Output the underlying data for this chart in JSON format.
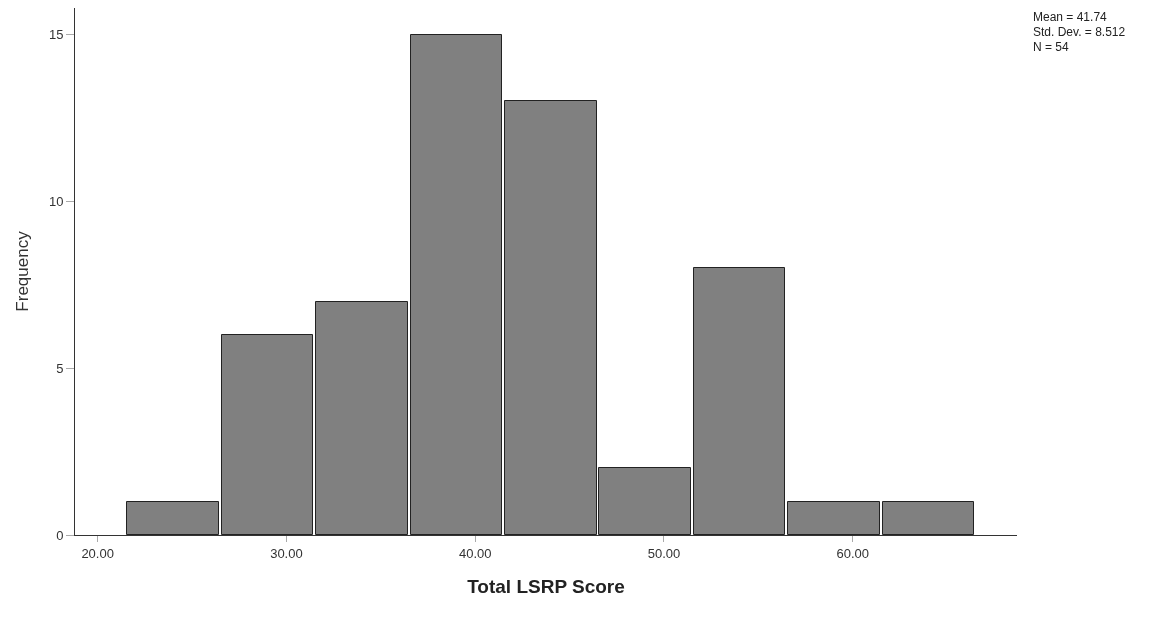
{
  "chart_data": {
    "type": "histogram",
    "xlabel": "Total LSRP Score",
    "ylabel": "Frequency",
    "bins": [
      21.5,
      26.5,
      31.5,
      36.5,
      41.5,
      46.5,
      51.5,
      56.5,
      61.5,
      66.5
    ],
    "values": [
      1,
      6,
      7,
      15,
      13,
      2,
      8,
      1,
      1
    ],
    "color": "#808080",
    "xlim": [
      18.8,
      68.7
    ],
    "xticks": [
      {
        "value": 20,
        "label": "20.00"
      },
      {
        "value": 30,
        "label": "30.00"
      },
      {
        "value": 40,
        "label": "40.00"
      },
      {
        "value": 50,
        "label": "50.00"
      },
      {
        "value": 60,
        "label": "60.00"
      }
    ],
    "ylim": [
      0,
      15.8
    ],
    "yticks": [
      0,
      5,
      10,
      15
    ],
    "annotations": [
      "Mean = 41.74",
      "Std. Dev. = 8.512",
      "N = 54"
    ]
  }
}
